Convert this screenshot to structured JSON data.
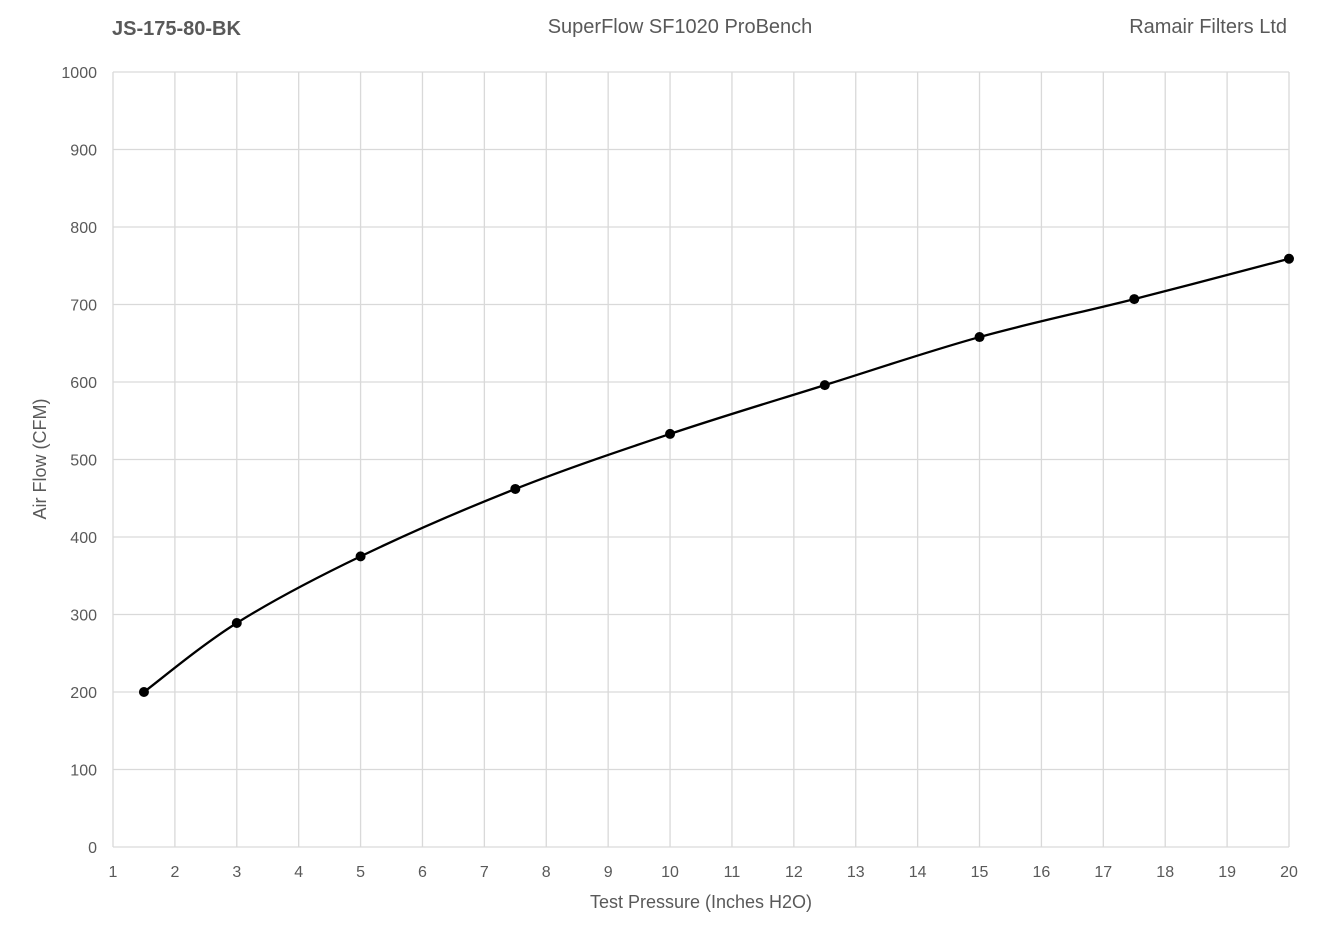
{
  "header": {
    "left": "JS-175-80-BK",
    "center": "SuperFlow SF1020 ProBench",
    "right": "Ramair Filters Ltd"
  },
  "chart_data": {
    "type": "line",
    "smooth": true,
    "markers": true,
    "xlabel": "Test Pressure (Inches H2O)",
    "ylabel": "Air Flow (CFM)",
    "xlim": [
      1,
      20
    ],
    "ylim": [
      0,
      1000
    ],
    "xticks": [
      1,
      2,
      3,
      4,
      5,
      6,
      7,
      8,
      9,
      10,
      11,
      12,
      13,
      14,
      15,
      16,
      17,
      18,
      19,
      20
    ],
    "yticks": [
      0,
      100,
      200,
      300,
      400,
      500,
      600,
      700,
      800,
      900,
      1000
    ],
    "grid": true,
    "series": [
      {
        "x": [
          1.5,
          3,
          5,
          7.5,
          10,
          12.5,
          15,
          17.5,
          20
        ],
        "y": [
          200,
          289,
          375,
          462,
          533,
          596,
          658,
          707,
          759
        ],
        "color": "#000000"
      }
    ]
  }
}
